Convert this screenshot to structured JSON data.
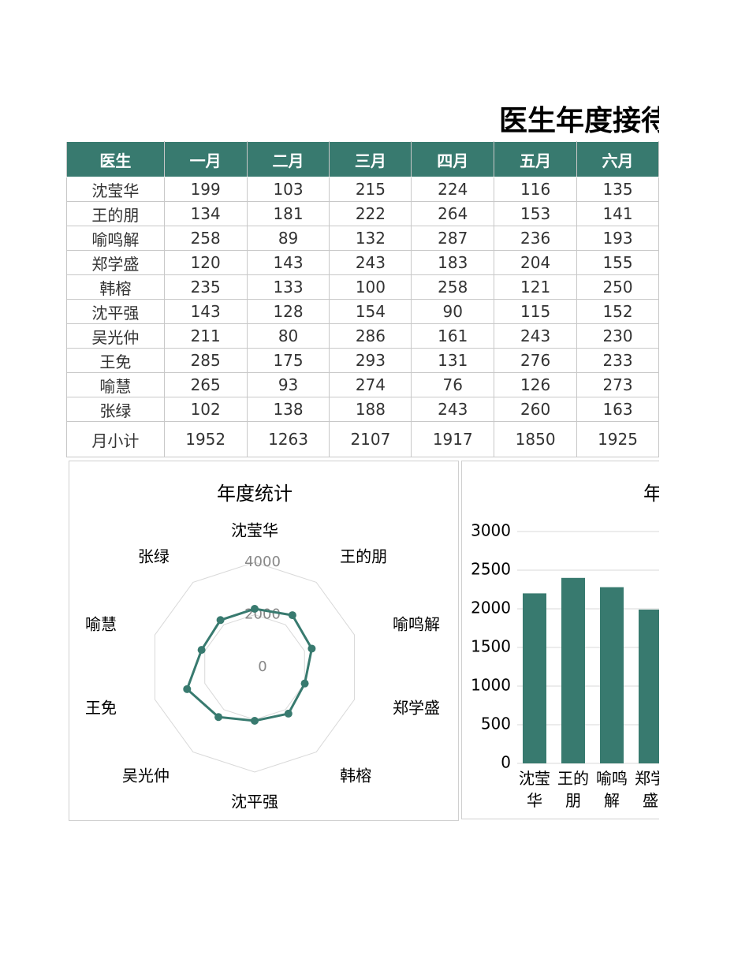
{
  "title": "医生年度接待",
  "table": {
    "header": [
      "医生",
      "一月",
      "二月",
      "三月",
      "四月",
      "五月",
      "六月"
    ],
    "rows": [
      [
        "沈莹华",
        199,
        103,
        215,
        224,
        116,
        135
      ],
      [
        "王的朋",
        134,
        181,
        222,
        264,
        153,
        141
      ],
      [
        "喻鸣解",
        258,
        89,
        132,
        287,
        236,
        193
      ],
      [
        "郑学盛",
        120,
        143,
        243,
        183,
        204,
        155
      ],
      [
        "韩榕",
        235,
        133,
        100,
        258,
        121,
        250
      ],
      [
        "沈平强",
        143,
        128,
        154,
        90,
        115,
        152
      ],
      [
        "吴光仲",
        211,
        80,
        286,
        161,
        243,
        230
      ],
      [
        "王免",
        285,
        175,
        293,
        131,
        276,
        233
      ],
      [
        "喻慧",
        265,
        93,
        274,
        76,
        126,
        273
      ],
      [
        "张绿",
        102,
        138,
        188,
        243,
        260,
        163
      ]
    ],
    "total": [
      "月小计",
      1952,
      1263,
      2107,
      1917,
      1850,
      1925
    ]
  },
  "chart_data": [
    {
      "type": "radar",
      "title": "年度统计",
      "categories": [
        "沈莹华",
        "王的朋",
        "喻鸣解",
        "郑学盛",
        "韩榕",
        "沈平强",
        "吴光仲",
        "王免",
        "喻慧",
        "张绿"
      ],
      "values": [
        2225,
        2450,
        2290,
        2010,
        2190,
        2045,
        2350,
        2710,
        2130,
        2220
      ],
      "color": "#387a6f",
      "ylim": [
        0,
        4000
      ],
      "yticks": [
        0,
        2000,
        4000
      ]
    },
    {
      "type": "bar",
      "title": "年",
      "categories": [
        "沈莹华",
        "王的朋",
        "喻鸣解",
        "郑学盛"
      ],
      "values": [
        2200,
        2400,
        2280,
        1990
      ],
      "color": "#387a6f",
      "ylim": [
        0,
        3000
      ],
      "yticks": [
        0,
        500,
        1000,
        1500,
        2000,
        2500,
        3000
      ],
      "grid": true
    }
  ]
}
